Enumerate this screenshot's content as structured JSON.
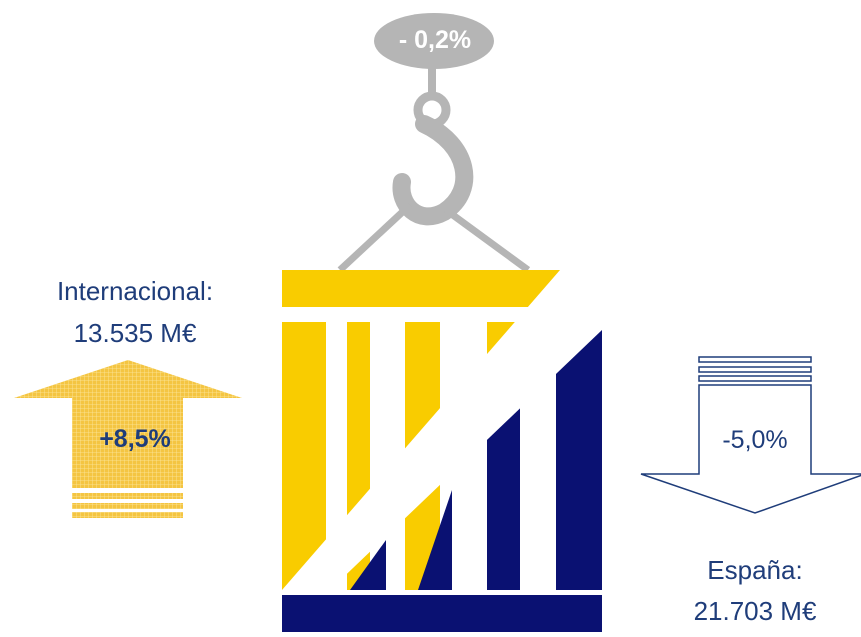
{
  "total": {
    "change": "- 0,2%"
  },
  "international": {
    "label": "Internacional:",
    "value": "13.535 M€",
    "change": "+8,5%"
  },
  "spain": {
    "label": "España:",
    "value": "21.703 M€",
    "change": "-5,0%"
  },
  "colors": {
    "yellow": "#f9cc00",
    "navy": "#0a1172",
    "gray": "#b5b5b5",
    "text": "#1f3d7a",
    "arrow_up": "#f4c542"
  }
}
